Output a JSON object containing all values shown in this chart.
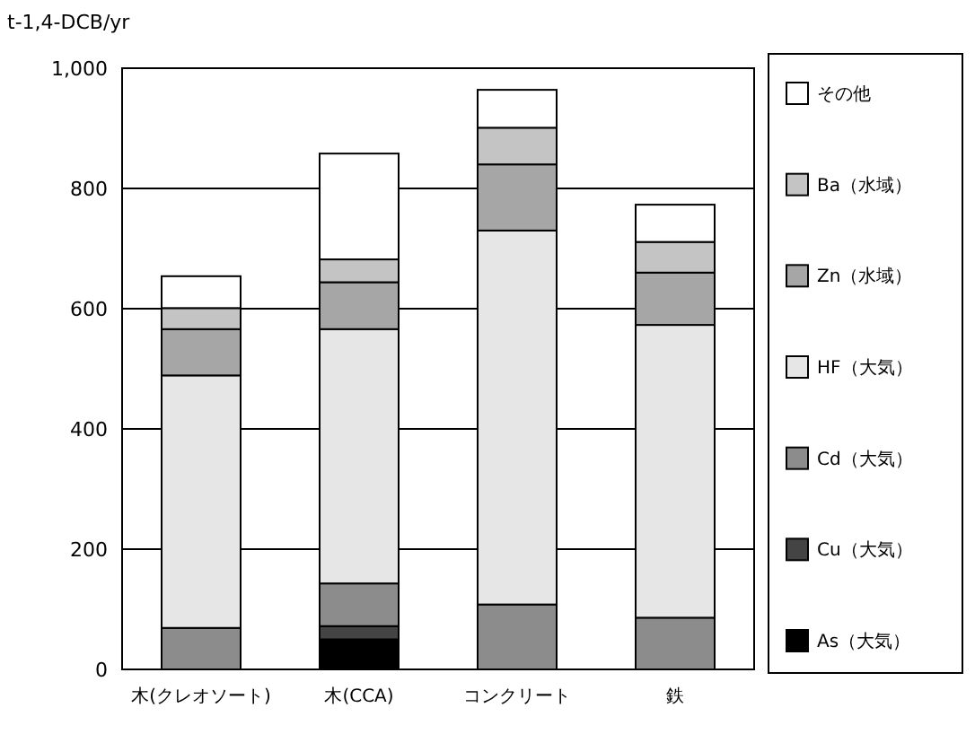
{
  "chart_data": {
    "type": "bar",
    "stacked": true,
    "ylabel": "t-1,4-DCB/yr",
    "categories": [
      "木(クレオソート)",
      "木(CCA)",
      "コンクリート",
      "鉄"
    ],
    "series": [
      {
        "name": "As（大気）",
        "color": "#000000",
        "values": [
          0,
          50,
          0,
          0
        ]
      },
      {
        "name": "Cu（大気）",
        "color": "#444444",
        "values": [
          0,
          22,
          0,
          0
        ]
      },
      {
        "name": "Cd（大気）",
        "color": "#8c8c8c",
        "values": [
          69,
          71,
          108,
          86
        ]
      },
      {
        "name": "HF（大気）",
        "color": "#e6e6e6",
        "values": [
          420,
          423,
          622,
          487
        ]
      },
      {
        "name": "Zn（水域）",
        "color": "#a6a6a6",
        "values": [
          77,
          78,
          110,
          87
        ]
      },
      {
        "name": "Ba（水域）",
        "color": "#c4c4c4",
        "values": [
          35,
          38,
          61,
          51
        ]
      },
      {
        "name": "その他",
        "color": "#ffffff",
        "values": [
          53,
          176,
          63,
          62
        ]
      }
    ],
    "ylim": [
      0,
      1000
    ],
    "yticks": [
      0,
      200,
      400,
      600,
      800,
      {
        "value": 1000,
        "label": "1,000"
      }
    ],
    "grid": "y",
    "legend": "right"
  }
}
